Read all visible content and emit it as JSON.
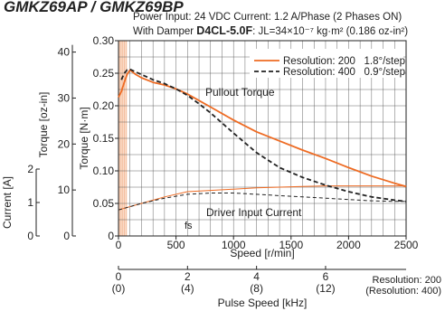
{
  "header": {
    "top_text": "GMKZ69AP / GMKZ69BP",
    "line1": "Power Input: 24 VDC   Current: 1.2 A/Phase (2 Phases ON)",
    "line2_prefix": "With Damper ",
    "line2_model": "D4CL-5.0F",
    "line2_suffix": ": JL=34×10⁻⁷ kg·m² (0.186 oz-in²)"
  },
  "chart_data": {
    "type": "line",
    "x_axis": {
      "label": "Speed [r/min]",
      "range": [
        0,
        2500
      ],
      "ticks": [
        0,
        500,
        1000,
        1500,
        2000,
        2500
      ]
    },
    "y_axis_torque": {
      "label": "Torque [N·m]",
      "range": [
        0,
        0.3
      ],
      "ticks": [
        "0",
        "0.05",
        "0.10",
        "0.15",
        "0.20",
        "0.25",
        "0.30"
      ],
      "tick_values": [
        0,
        0.05,
        0.1,
        0.15,
        0.2,
        0.25,
        0.3
      ]
    },
    "y_axis_oz": {
      "label": "Torque [oz-in]",
      "ticks": [
        "0",
        "10",
        "20",
        "30",
        "40"
      ],
      "tick_values": [
        0,
        10,
        20,
        30,
        40
      ]
    },
    "y_axis_current": {
      "label": "Current [A]",
      "ticks": [
        "0",
        "1",
        "2"
      ],
      "tick_values": [
        0,
        1,
        2
      ]
    },
    "pulse_axis": {
      "label": "Pulse Speed [kHz]",
      "ticks": [
        {
          "speed": 0,
          "top": "0",
          "bottom": "(0)"
        },
        {
          "speed": 600,
          "top": "2",
          "bottom": "(4)"
        },
        {
          "speed": 1200,
          "top": "4",
          "bottom": "(8)"
        },
        {
          "speed": 1800,
          "top": "6",
          "bottom": "(12)"
        }
      ],
      "note_top": "Resolution: 200",
      "note_bottom": "(Resolution: 400)"
    },
    "grid": true,
    "legend_position": "top-right",
    "fs_label": "fs",
    "fs_speed_range": [
      0,
      75
    ],
    "curve_labels": {
      "pullout": "Pullout Torque",
      "driver": "Driver Input Current"
    },
    "series": [
      {
        "name": "Resolution: 200   1.8°/step",
        "style": "solid",
        "color": "#ee6b23",
        "pullout_torque": {
          "x": [
            0,
            25,
            50,
            75,
            100,
            150,
            200,
            300,
            400,
            500,
            600,
            700,
            800,
            1000,
            1200,
            1400,
            1600,
            1800,
            2000,
            2200,
            2400,
            2500
          ],
          "y": [
            0.213,
            0.222,
            0.236,
            0.248,
            0.255,
            0.248,
            0.243,
            0.236,
            0.232,
            0.226,
            0.218,
            0.208,
            0.198,
            0.178,
            0.16,
            0.146,
            0.132,
            0.119,
            0.105,
            0.092,
            0.081,
            0.076
          ]
        },
        "driver_current": {
          "x": [
            0,
            200,
            400,
            600,
            800,
            1000,
            1200,
            1400,
            1600,
            1800,
            2000,
            2200,
            2400,
            2500
          ],
          "y": [
            0.04,
            0.05,
            0.06,
            0.068,
            0.07,
            0.072,
            0.074,
            0.075,
            0.076,
            0.077,
            0.077,
            0.077,
            0.077,
            0.077
          ]
        }
      },
      {
        "name": "Resolution: 400   0.9°/step",
        "style": "dashed",
        "color": "#222222",
        "pullout_torque": {
          "x": [
            25,
            50,
            75,
            100,
            150,
            200,
            300,
            400,
            500,
            600,
            700,
            800,
            1000,
            1200,
            1400,
            1600,
            1800,
            2000,
            2200,
            2400,
            2500
          ],
          "y": [
            0.24,
            0.25,
            0.255,
            0.256,
            0.252,
            0.248,
            0.24,
            0.234,
            0.226,
            0.216,
            0.203,
            0.189,
            0.158,
            0.128,
            0.105,
            0.09,
            0.078,
            0.068,
            0.06,
            0.055,
            0.053
          ]
        },
        "driver_current": {
          "x": [
            0,
            200,
            400,
            600,
            800,
            1000,
            1200,
            1400,
            1600,
            1800,
            2000,
            2200,
            2400,
            2500
          ],
          "y": [
            0.04,
            0.05,
            0.058,
            0.064,
            0.066,
            0.066,
            0.064,
            0.062,
            0.06,
            0.058,
            0.056,
            0.054,
            0.053,
            0.053
          ]
        }
      }
    ]
  }
}
